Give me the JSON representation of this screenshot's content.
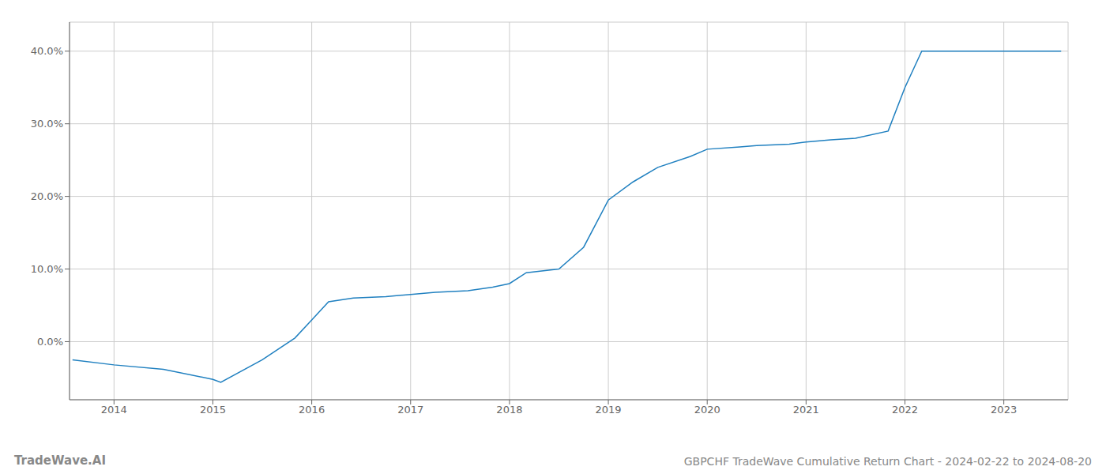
{
  "chart_data": {
    "type": "line",
    "title": "GBPCHF TradeWave Cumulative Return Chart - 2024-02-22 to 2024-08-20",
    "annotations": [
      "TradeWave.AI"
    ],
    "color": "#2080c0",
    "x": [
      2013.58,
      2014.0,
      2014.5,
      2015.0,
      2015.08,
      2015.5,
      2015.83,
      2016.0,
      2016.17,
      2016.42,
      2016.75,
      2017.0,
      2017.25,
      2017.58,
      2017.83,
      2018.0,
      2018.17,
      2018.5,
      2018.75,
      2019.0,
      2019.25,
      2019.5,
      2019.83,
      2020.0,
      2020.33,
      2020.5,
      2020.83,
      2021.0,
      2021.25,
      2021.5,
      2021.83,
      2022.0,
      2022.17,
      2022.5,
      2022.83,
      2023.0,
      2023.58
    ],
    "values": [
      -2.5,
      -3.2,
      -3.8,
      -5.2,
      -5.6,
      -2.5,
      0.5,
      3.0,
      5.5,
      6.0,
      6.2,
      6.5,
      6.8,
      7.0,
      7.5,
      8.0,
      9.5,
      10.0,
      13.0,
      19.5,
      22.0,
      24.0,
      25.5,
      26.5,
      26.8,
      27.0,
      27.2,
      27.5,
      27.8,
      28.0,
      29.0,
      35.0,
      40.0,
      40.0,
      40.0,
      40.0,
      40.0
    ],
    "xlim": [
      2013.55,
      2023.65
    ],
    "ylim": [
      -8,
      44
    ],
    "xticks": [
      2014,
      2015,
      2016,
      2017,
      2018,
      2019,
      2020,
      2021,
      2022,
      2023
    ],
    "yticks": [
      {
        "value": 0,
        "label": "0.0%"
      },
      {
        "value": 10,
        "label": "10.0%"
      },
      {
        "value": 20,
        "label": "20.0%"
      },
      {
        "value": 30,
        "label": "30.0%"
      },
      {
        "value": 40,
        "label": "40.0%"
      }
    ],
    "grid": true
  }
}
